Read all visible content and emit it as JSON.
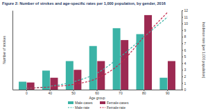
{
  "chart_data": {
    "type": "bar",
    "title": "Figure 2: Number of strokes and age-specific rates per 1,000 population, by gender, 2016",
    "x_label": "Age group",
    "y_label": "Number of strokes",
    "y2_label": "Incidence rate (per 1,000 population)",
    "categories": [
      "0",
      "40",
      "50",
      "60",
      "70",
      "80",
      "90"
    ],
    "ylim": [
      0,
      200
    ],
    "y2lim": [
      0,
      12
    ],
    "y2ticks": [
      0,
      1,
      2,
      3,
      4,
      5,
      6,
      7,
      8,
      9,
      10,
      11,
      12
    ],
    "legend": "bottom",
    "grid": false,
    "series": [
      {
        "name": "Male-cases",
        "type": "bar",
        "color": "#3bb3a6",
        "values": [
          20,
          48,
          72,
          110,
          155,
          140,
          30
        ]
      },
      {
        "name": "Female-cases",
        "type": "bar",
        "color": "#9c2a52",
        "values": [
          18,
          30,
          50,
          72,
          125,
          188,
          72
        ]
      },
      {
        "name": "Male-rate",
        "type": "line",
        "axis": "y2",
        "line_style": "dashed",
        "color": "#3bb3a6",
        "values": [
          0.2,
          0.5,
          1.2,
          2.5,
          5,
          8,
          11
        ]
      },
      {
        "name": "Female-rate",
        "type": "line",
        "axis": "y2",
        "line_style": "dashed",
        "color": "#c4284a",
        "values": [
          0.2,
          0.4,
          0.8,
          1.7,
          4,
          8,
          11.7
        ]
      }
    ]
  }
}
